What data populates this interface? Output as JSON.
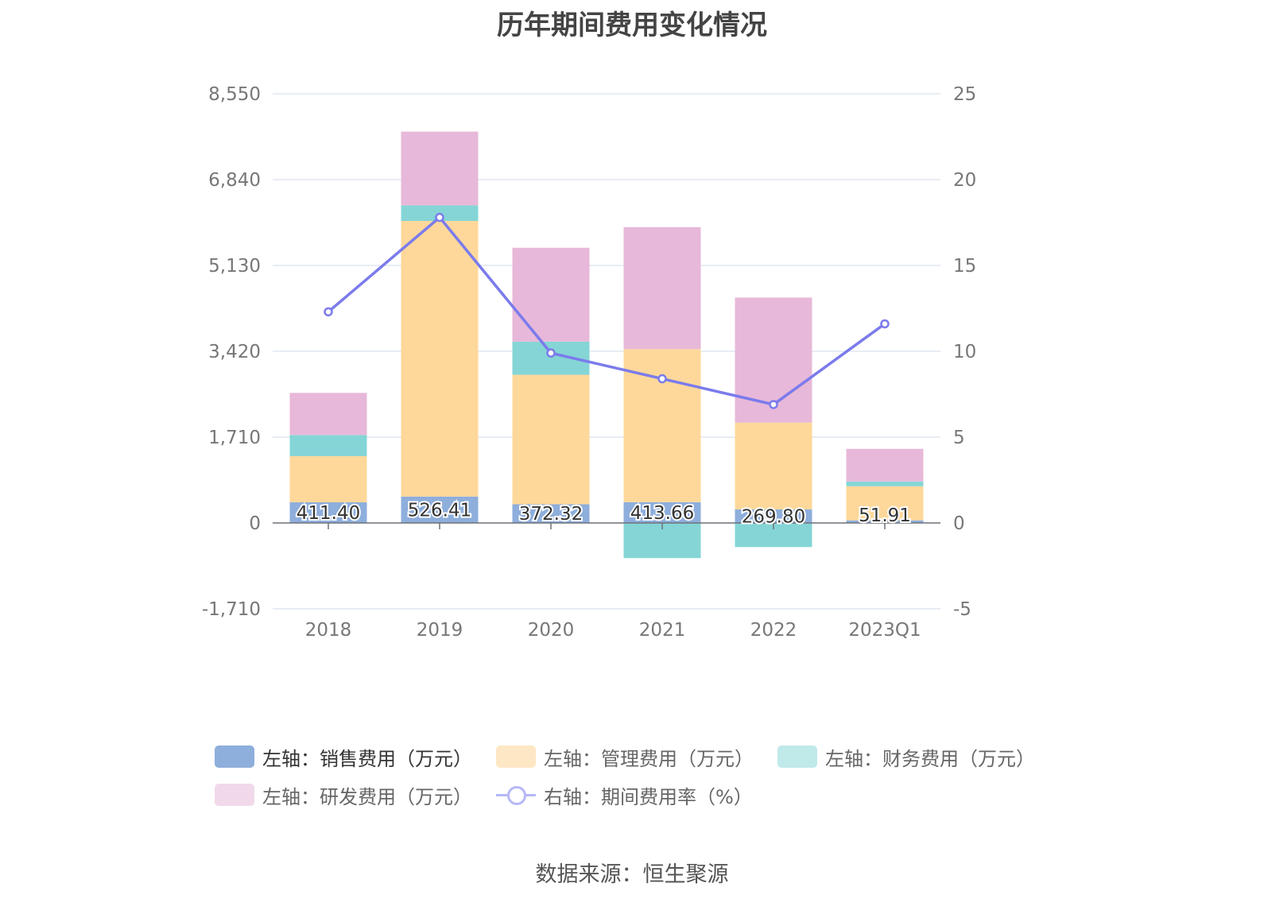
{
  "title": "历年期间费用变化情况",
  "source": "数据来源：恒生聚源",
  "legend": {
    "sales": "左轴：销售费用（万元）",
    "admin": "左轴：管理费用（万元）",
    "finance": "左轴：财务费用（万元）",
    "rd": "左轴：研发费用（万元）",
    "rate": "右轴：期间费用率（%）"
  },
  "colors": {
    "sales": "#8eaedc",
    "admin": "#fed89a",
    "finance": "#85d5d6",
    "rd": "#e7b8d9",
    "rate": "#7b7bec",
    "legend_admin": "#fde7c4",
    "legend_finance": "#c0e9ea",
    "legend_rd": "#f1d9ea"
  },
  "chart_data": {
    "type": "bar",
    "stacked": true,
    "categories": [
      "2018",
      "2019",
      "2020",
      "2021",
      "2022",
      "2023Q1"
    ],
    "left_axis": {
      "ticks": [
        "8,550",
        "6,840",
        "5,130",
        "3,420",
        "1,710",
        "0",
        "-1,710"
      ],
      "ylim": [
        -1710,
        8550
      ]
    },
    "right_axis": {
      "ticks": [
        "25",
        "20",
        "15",
        "10",
        "5",
        "0",
        "-5"
      ],
      "ylim": [
        -5,
        25
      ]
    },
    "series": [
      {
        "name": "左轴：销售费用（万元）",
        "key": "sales",
        "axis": "left",
        "values": [
          411.4,
          526.41,
          372.32,
          413.66,
          269.8,
          51.91
        ]
      },
      {
        "name": "左轴：管理费用（万元）",
        "key": "admin",
        "axis": "left",
        "values": [
          920,
          5490,
          2580,
          3050,
          1730,
          680
        ]
      },
      {
        "name": "左轴：财务费用（万元）",
        "key": "finance",
        "axis": "left",
        "values": [
          420,
          310,
          660,
          -700,
          -480,
          95
        ]
      },
      {
        "name": "左轴：研发费用（万元）",
        "key": "rd",
        "axis": "left",
        "values": [
          840,
          1470,
          1870,
          2430,
          2490,
          650
        ]
      },
      {
        "name": "右轴：期间费用率（%）",
        "key": "rate",
        "axis": "right",
        "type": "line",
        "values": [
          12.3,
          17.8,
          9.9,
          8.4,
          6.9,
          11.6
        ]
      }
    ],
    "data_labels": [
      "411.40",
      "526.41",
      "372.32",
      "413.66",
      "269.80",
      "51.91"
    ],
    "grid": true,
    "legend_position": "bottom"
  }
}
